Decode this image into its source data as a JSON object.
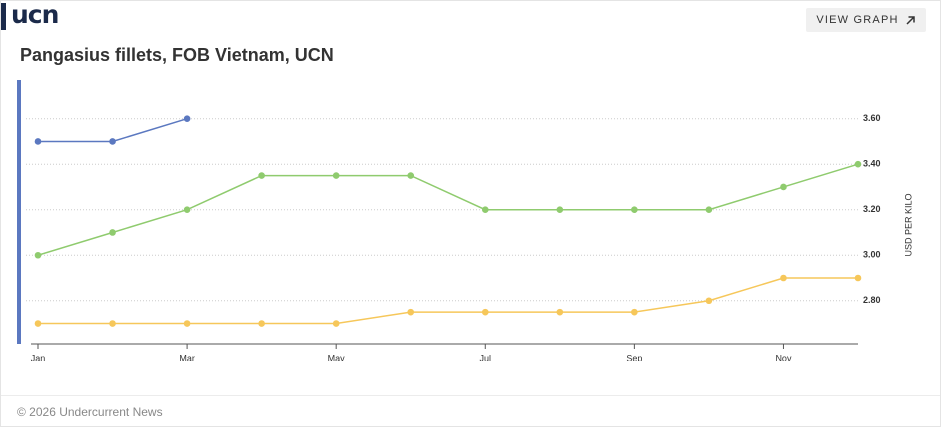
{
  "header": {
    "logo": "ucn",
    "button": "VIEW GRAPH"
  },
  "footer": "© 2026 Undercurrent News",
  "chart_data": {
    "type": "line",
    "title": "Pangasius fillets, FOB Vietnam, UCN",
    "y_label": "USD PER KILO",
    "categories": [
      "Jan",
      null,
      "Mar",
      null,
      "May",
      null,
      "Jul",
      null,
      "Sep",
      null,
      "Nov",
      null
    ],
    "series": [
      {
        "color": "#5b78c0",
        "values": [
          3.5,
          3.5,
          3.6,
          null,
          null,
          null,
          null,
          null,
          null,
          null,
          null,
          null
        ]
      },
      {
        "color": "#8fcb6e",
        "values": [
          3.0,
          3.1,
          3.2,
          3.35,
          3.35,
          3.35,
          3.2,
          3.2,
          3.2,
          3.2,
          3.3,
          3.4
        ]
      },
      {
        "color": "#f6c75a",
        "values": [
          2.7,
          2.7,
          2.7,
          2.7,
          2.7,
          2.75,
          2.75,
          2.75,
          2.75,
          2.8,
          2.9,
          2.9
        ]
      }
    ],
    "ylim": [
      2.61,
      3.77
    ],
    "yticks": [
      {
        "value": 2.8,
        "label": "2.80"
      },
      {
        "value": 3.0,
        "label": "3.00"
      },
      {
        "value": 3.2,
        "label": "3.20"
      },
      {
        "value": 3.4,
        "label": "3.40"
      },
      {
        "value": 3.6,
        "label": "3.60"
      }
    ],
    "grid": true
  }
}
